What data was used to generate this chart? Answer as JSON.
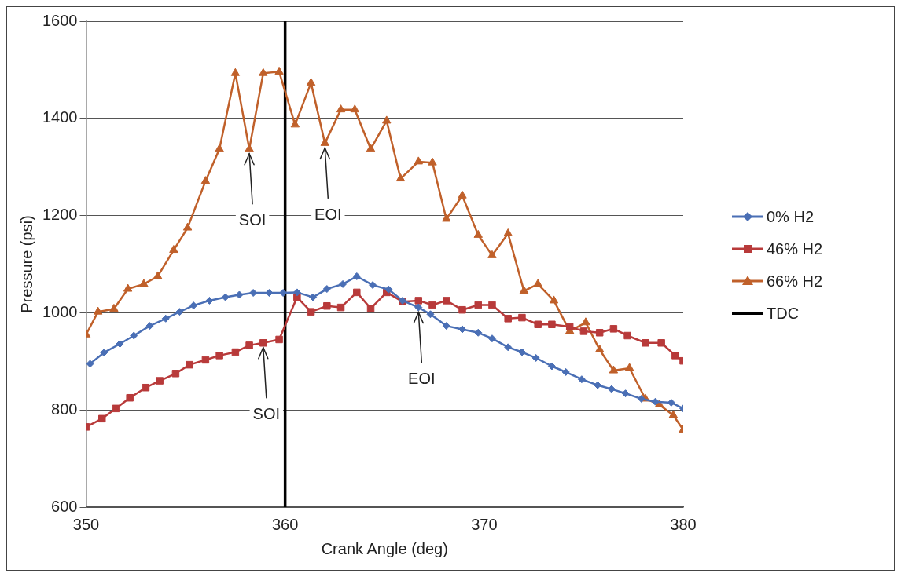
{
  "chart_data": {
    "type": "line",
    "xlabel": "Crank Angle (deg)",
    "ylabel": "Pressure (psi)",
    "xlim": [
      350,
      380
    ],
    "xticks": [
      350,
      360,
      370,
      380
    ],
    "ylim": [
      600,
      1600
    ],
    "yticks": [
      600,
      800,
      1000,
      1200,
      1400,
      1600
    ],
    "grid": "y",
    "legend": "right",
    "line_style": "solid",
    "series": [
      {
        "name": "0% H2",
        "color": "#4a6fb5",
        "marker": "diamond",
        "x": [
          350.2,
          350.9,
          351.7,
          352.4,
          353.2,
          354.0,
          354.7,
          355.4,
          356.2,
          357.0,
          357.7,
          358.4,
          359.2,
          359.9,
          360.6,
          361.4,
          362.1,
          362.9,
          363.6,
          364.4,
          365.2,
          365.9,
          366.7,
          367.3,
          368.1,
          368.9,
          369.7,
          370.4,
          371.2,
          371.9,
          372.6,
          373.4,
          374.1,
          374.9,
          375.7,
          376.4,
          377.1,
          377.9,
          378.6,
          379.4,
          380.0
        ],
        "values": [
          895,
          918,
          936,
          953,
          973,
          988,
          1002,
          1015,
          1025,
          1032,
          1037,
          1041,
          1041,
          1041,
          1042,
          1032,
          1049,
          1059,
          1075,
          1057,
          1048,
          1025,
          1011,
          997,
          973,
          966,
          959,
          947,
          929,
          919,
          907,
          890,
          878,
          863,
          851,
          843,
          834,
          823,
          817,
          815,
          803
        ]
      },
      {
        "name": "46% H2",
        "color": "#b83a3a",
        "marker": "square",
        "x": [
          350.0,
          350.8,
          351.5,
          352.2,
          353.0,
          353.7,
          354.5,
          355.2,
          356.0,
          356.7,
          357.5,
          358.2,
          358.9,
          359.7,
          360.6,
          361.3,
          362.1,
          362.8,
          363.6,
          364.3,
          365.1,
          365.9,
          366.7,
          367.4,
          368.1,
          368.9,
          369.7,
          370.4,
          371.2,
          371.9,
          372.7,
          373.4,
          374.3,
          375.0,
          375.8,
          376.5,
          377.2,
          378.1,
          378.9,
          379.6,
          380.0
        ],
        "values": [
          765,
          782,
          803,
          825,
          846,
          860,
          875,
          893,
          903,
          912,
          919,
          933,
          938,
          945,
          1032,
          1002,
          1014,
          1011,
          1042,
          1009,
          1042,
          1023,
          1025,
          1016,
          1025,
          1006,
          1016,
          1016,
          988,
          990,
          976,
          976,
          971,
          962,
          959,
          967,
          953,
          938,
          938,
          912,
          901
        ]
      },
      {
        "name": "66% H2",
        "color": "#c0602a",
        "marker": "triangle",
        "x": [
          350.0,
          350.6,
          351.4,
          352.1,
          352.9,
          353.6,
          354.4,
          355.1,
          356.0,
          356.7,
          357.5,
          358.2,
          358.9,
          359.7,
          360.5,
          361.3,
          362.0,
          362.8,
          363.5,
          364.3,
          365.1,
          365.8,
          366.7,
          367.4,
          368.1,
          368.9,
          369.7,
          370.4,
          371.2,
          372.0,
          372.7,
          373.5,
          374.3,
          375.1,
          375.8,
          376.5,
          377.3,
          378.1,
          378.8,
          379.5,
          380.0
        ],
        "values": [
          955,
          1002,
          1008,
          1049,
          1059,
          1075,
          1129,
          1175,
          1271,
          1337,
          1493,
          1337,
          1493,
          1496,
          1387,
          1473,
          1349,
          1418,
          1418,
          1337,
          1395,
          1276,
          1311,
          1309,
          1193,
          1241,
          1160,
          1118,
          1163,
          1045,
          1059,
          1025,
          962,
          980,
          924,
          881,
          886,
          823,
          811,
          789,
          759
        ]
      },
      {
        "name": "TDC",
        "color": "#000000",
        "marker": "none",
        "x": [
          360,
          360
        ],
        "values": [
          600,
          1600
        ]
      }
    ],
    "annotations": [
      {
        "text": "SOI",
        "x": 358.2,
        "y": 1337
      },
      {
        "text": "EOI",
        "x": 362.0,
        "y": 1349
      },
      {
        "text": "SOI",
        "x": 358.9,
        "y": 938
      },
      {
        "text": "EOI",
        "x": 366.7,
        "y": 1011
      }
    ]
  }
}
